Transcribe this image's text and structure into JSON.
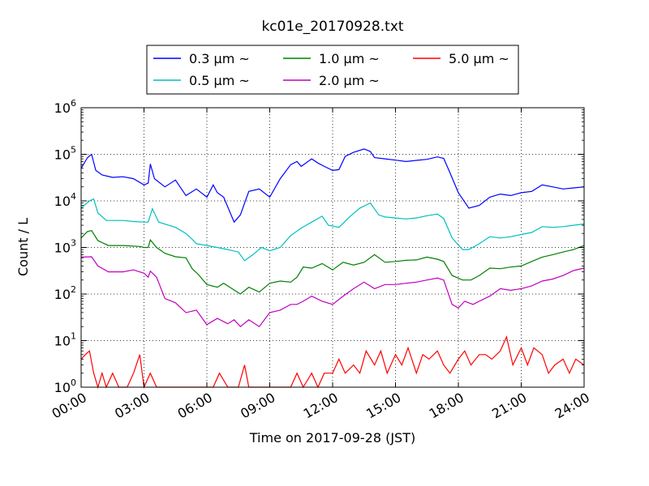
{
  "chart_data": {
    "type": "line",
    "title": "kc01e_20170928.txt",
    "xlabel": "Time on 2017-09-28 (JST)",
    "ylabel": "Count / L",
    "yscale": "log",
    "xlim": [
      0,
      24
    ],
    "ylim": [
      1,
      1000000
    ],
    "x_ticks": [
      "00:00",
      "03:00",
      "06:00",
      "09:00",
      "12:00",
      "15:00",
      "18:00",
      "21:00",
      "24:00"
    ],
    "y_ticks": [
      {
        "base": "10",
        "exp": "0"
      },
      {
        "base": "10",
        "exp": "1"
      },
      {
        "base": "10",
        "exp": "2"
      },
      {
        "base": "10",
        "exp": "3"
      },
      {
        "base": "10",
        "exp": "4"
      },
      {
        "base": "10",
        "exp": "5"
      },
      {
        "base": "10",
        "exp": "6"
      }
    ],
    "grid": true,
    "legend_position": "top-center",
    "series": [
      {
        "name": "0.3 μm ~",
        "color": "#0000ff",
        "points": [
          [
            0,
            50000
          ],
          [
            0.3,
            85000
          ],
          [
            0.5,
            100000
          ],
          [
            0.7,
            45000
          ],
          [
            1.0,
            36000
          ],
          [
            1.5,
            32000
          ],
          [
            2.0,
            33000
          ],
          [
            2.5,
            30000
          ],
          [
            3.0,
            22000
          ],
          [
            3.2,
            24000
          ],
          [
            3.3,
            62000
          ],
          [
            3.5,
            30000
          ],
          [
            4.0,
            20000
          ],
          [
            4.5,
            28000
          ],
          [
            5.0,
            13000
          ],
          [
            5.5,
            18000
          ],
          [
            6.0,
            12000
          ],
          [
            6.3,
            22000
          ],
          [
            6.5,
            15000
          ],
          [
            6.8,
            12000
          ],
          [
            7.3,
            3500
          ],
          [
            7.6,
            5000
          ],
          [
            8.0,
            16000
          ],
          [
            8.5,
            18000
          ],
          [
            9.0,
            12000
          ],
          [
            9.5,
            30000
          ],
          [
            10.0,
            60000
          ],
          [
            10.3,
            70000
          ],
          [
            10.5,
            55000
          ],
          [
            11.0,
            80000
          ],
          [
            11.3,
            65000
          ],
          [
            11.6,
            55000
          ],
          [
            12.0,
            45000
          ],
          [
            12.3,
            47000
          ],
          [
            12.6,
            90000
          ],
          [
            13.0,
            110000
          ],
          [
            13.5,
            130000
          ],
          [
            13.8,
            115000
          ],
          [
            14.0,
            85000
          ],
          [
            14.5,
            80000
          ],
          [
            15.0,
            75000
          ],
          [
            15.5,
            70000
          ],
          [
            16.0,
            74000
          ],
          [
            16.5,
            78000
          ],
          [
            17.0,
            88000
          ],
          [
            17.3,
            82000
          ],
          [
            17.6,
            40000
          ],
          [
            18.0,
            15000
          ],
          [
            18.5,
            7000
          ],
          [
            19.0,
            8000
          ],
          [
            19.5,
            12000
          ],
          [
            20.0,
            14000
          ],
          [
            20.5,
            13000
          ],
          [
            21.0,
            15000
          ],
          [
            21.5,
            16000
          ],
          [
            22.0,
            22000
          ],
          [
            22.5,
            20000
          ],
          [
            23.0,
            18000
          ],
          [
            23.5,
            19000
          ],
          [
            24.0,
            20000
          ]
        ]
      },
      {
        "name": "0.5 μm ~",
        "color": "#00bfbf",
        "points": [
          [
            0,
            7000
          ],
          [
            0.4,
            10000
          ],
          [
            0.6,
            11000
          ],
          [
            0.8,
            5500
          ],
          [
            1.2,
            3800
          ],
          [
            2.0,
            3800
          ],
          [
            2.5,
            3600
          ],
          [
            3.0,
            3500
          ],
          [
            3.2,
            3500
          ],
          [
            3.4,
            6800
          ],
          [
            3.7,
            3500
          ],
          [
            4.5,
            2700
          ],
          [
            5.0,
            2000
          ],
          [
            5.3,
            1500
          ],
          [
            5.5,
            1200
          ],
          [
            6.0,
            1100
          ],
          [
            6.5,
            1000
          ],
          [
            7.0,
            900
          ],
          [
            7.5,
            800
          ],
          [
            7.8,
            520
          ],
          [
            8.2,
            700
          ],
          [
            8.6,
            1000
          ],
          [
            9.0,
            850
          ],
          [
            9.5,
            1000
          ],
          [
            10.0,
            1800
          ],
          [
            10.5,
            2600
          ],
          [
            11.0,
            3500
          ],
          [
            11.5,
            4700
          ],
          [
            11.8,
            3000
          ],
          [
            12.3,
            2700
          ],
          [
            12.8,
            4500
          ],
          [
            13.3,
            7000
          ],
          [
            13.8,
            9000
          ],
          [
            14.2,
            5000
          ],
          [
            14.5,
            4500
          ],
          [
            15.0,
            4300
          ],
          [
            15.5,
            4100
          ],
          [
            16.0,
            4300
          ],
          [
            16.5,
            4800
          ],
          [
            17.0,
            5200
          ],
          [
            17.3,
            4200
          ],
          [
            17.7,
            1600
          ],
          [
            18.2,
            900
          ],
          [
            18.5,
            900
          ],
          [
            19.0,
            1200
          ],
          [
            19.5,
            1700
          ],
          [
            20.0,
            1600
          ],
          [
            20.5,
            1700
          ],
          [
            21.0,
            1900
          ],
          [
            21.5,
            2100
          ],
          [
            22.0,
            2800
          ],
          [
            22.5,
            2700
          ],
          [
            23.0,
            2800
          ],
          [
            23.5,
            3000
          ],
          [
            24.0,
            3200
          ]
        ]
      },
      {
        "name": "1.0 μm ~",
        "color": "#008000",
        "points": [
          [
            0,
            1600
          ],
          [
            0.3,
            2200
          ],
          [
            0.5,
            2300
          ],
          [
            0.8,
            1400
          ],
          [
            1.3,
            1100
          ],
          [
            2.0,
            1100
          ],
          [
            2.8,
            1050
          ],
          [
            3.0,
            1000
          ],
          [
            3.2,
            1000
          ],
          [
            3.3,
            1450
          ],
          [
            3.6,
            1000
          ],
          [
            4.0,
            750
          ],
          [
            4.5,
            630
          ],
          [
            5.0,
            600
          ],
          [
            5.3,
            350
          ],
          [
            5.6,
            260
          ],
          [
            6.0,
            160
          ],
          [
            6.5,
            140
          ],
          [
            6.8,
            170
          ],
          [
            7.2,
            130
          ],
          [
            7.6,
            100
          ],
          [
            8.0,
            140
          ],
          [
            8.5,
            110
          ],
          [
            9.0,
            170
          ],
          [
            9.5,
            190
          ],
          [
            10.0,
            180
          ],
          [
            10.3,
            230
          ],
          [
            10.6,
            380
          ],
          [
            11.0,
            360
          ],
          [
            11.5,
            450
          ],
          [
            12.0,
            330
          ],
          [
            12.5,
            480
          ],
          [
            13.0,
            420
          ],
          [
            13.5,
            480
          ],
          [
            14.0,
            700
          ],
          [
            14.5,
            480
          ],
          [
            15.0,
            500
          ],
          [
            15.5,
            530
          ],
          [
            16.0,
            540
          ],
          [
            16.5,
            620
          ],
          [
            17.0,
            560
          ],
          [
            17.3,
            500
          ],
          [
            17.7,
            250
          ],
          [
            18.2,
            200
          ],
          [
            18.6,
            200
          ],
          [
            19.0,
            250
          ],
          [
            19.5,
            360
          ],
          [
            20.0,
            350
          ],
          [
            20.5,
            380
          ],
          [
            21.0,
            400
          ],
          [
            21.5,
            500
          ],
          [
            22.0,
            620
          ],
          [
            22.5,
            700
          ],
          [
            23.0,
            800
          ],
          [
            23.5,
            900
          ],
          [
            24.0,
            1100
          ]
        ]
      },
      {
        "name": "2.0 μm ~",
        "color": "#bf00bf",
        "points": [
          [
            0,
            620
          ],
          [
            0.5,
            630
          ],
          [
            0.8,
            400
          ],
          [
            1.3,
            300
          ],
          [
            2.0,
            300
          ],
          [
            2.5,
            330
          ],
          [
            3.0,
            280
          ],
          [
            3.2,
            230
          ],
          [
            3.3,
            310
          ],
          [
            3.6,
            230
          ],
          [
            4.0,
            80
          ],
          [
            4.5,
            65
          ],
          [
            5.0,
            40
          ],
          [
            5.5,
            45
          ],
          [
            6.0,
            22
          ],
          [
            6.5,
            30
          ],
          [
            7.0,
            23
          ],
          [
            7.3,
            28
          ],
          [
            7.6,
            20
          ],
          [
            8.0,
            28
          ],
          [
            8.5,
            20
          ],
          [
            9.0,
            40
          ],
          [
            9.5,
            45
          ],
          [
            10.0,
            60
          ],
          [
            10.3,
            60
          ],
          [
            10.6,
            70
          ],
          [
            11.0,
            90
          ],
          [
            11.5,
            70
          ],
          [
            12.0,
            60
          ],
          [
            12.5,
            90
          ],
          [
            13.0,
            130
          ],
          [
            13.5,
            180
          ],
          [
            14.0,
            130
          ],
          [
            14.5,
            160
          ],
          [
            15.0,
            160
          ],
          [
            15.5,
            170
          ],
          [
            16.0,
            180
          ],
          [
            16.5,
            200
          ],
          [
            17.0,
            220
          ],
          [
            17.3,
            200
          ],
          [
            17.7,
            60
          ],
          [
            18.0,
            50
          ],
          [
            18.3,
            70
          ],
          [
            18.7,
            60
          ],
          [
            19.0,
            70
          ],
          [
            19.5,
            90
          ],
          [
            20.0,
            130
          ],
          [
            20.5,
            120
          ],
          [
            21.0,
            130
          ],
          [
            21.5,
            150
          ],
          [
            22.0,
            190
          ],
          [
            22.5,
            210
          ],
          [
            23.0,
            250
          ],
          [
            23.5,
            320
          ],
          [
            24.0,
            360
          ]
        ]
      },
      {
        "name": "5.0 μm ~",
        "color": "#ff0000",
        "points": [
          [
            0,
            4
          ],
          [
            0.2,
            5
          ],
          [
            0.4,
            6
          ],
          [
            0.6,
            2
          ],
          [
            0.8,
            1
          ],
          [
            1.0,
            2
          ],
          [
            1.2,
            1
          ],
          [
            1.5,
            2
          ],
          [
            1.8,
            1
          ],
          [
            2.2,
            1
          ],
          [
            2.5,
            2
          ],
          [
            2.8,
            5
          ],
          [
            3.0,
            1
          ],
          [
            3.3,
            2
          ],
          [
            3.6,
            1
          ],
          [
            4.0,
            1
          ],
          [
            4.5,
            1
          ],
          [
            5.0,
            1
          ],
          [
            5.5,
            1
          ],
          [
            6.0,
            1
          ],
          [
            6.3,
            1
          ],
          [
            6.6,
            2
          ],
          [
            7.0,
            1
          ],
          [
            7.5,
            1
          ],
          [
            7.8,
            3
          ],
          [
            8.0,
            1
          ],
          [
            9.0,
            1
          ],
          [
            9.5,
            1
          ],
          [
            10.0,
            1
          ],
          [
            10.3,
            2
          ],
          [
            10.6,
            1
          ],
          [
            11.0,
            2
          ],
          [
            11.3,
            1
          ],
          [
            11.6,
            2
          ],
          [
            12.0,
            2
          ],
          [
            12.3,
            4
          ],
          [
            12.6,
            2
          ],
          [
            13.0,
            3
          ],
          [
            13.3,
            2
          ],
          [
            13.6,
            6
          ],
          [
            14.0,
            3
          ],
          [
            14.3,
            6
          ],
          [
            14.6,
            2
          ],
          [
            15.0,
            5
          ],
          [
            15.3,
            3
          ],
          [
            15.6,
            7
          ],
          [
            16.0,
            2
          ],
          [
            16.3,
            5
          ],
          [
            16.6,
            4
          ],
          [
            17.0,
            6
          ],
          [
            17.3,
            3
          ],
          [
            17.6,
            2
          ],
          [
            18.0,
            4
          ],
          [
            18.3,
            6
          ],
          [
            18.6,
            3
          ],
          [
            19.0,
            5
          ],
          [
            19.3,
            5
          ],
          [
            19.6,
            4
          ],
          [
            20.0,
            6
          ],
          [
            20.3,
            12
          ],
          [
            20.6,
            3
          ],
          [
            21.0,
            7
          ],
          [
            21.3,
            3
          ],
          [
            21.6,
            7
          ],
          [
            22.0,
            5
          ],
          [
            22.3,
            2
          ],
          [
            22.6,
            3
          ],
          [
            23.0,
            4
          ],
          [
            23.3,
            2
          ],
          [
            23.6,
            4
          ],
          [
            24.0,
            3
          ]
        ]
      }
    ]
  }
}
